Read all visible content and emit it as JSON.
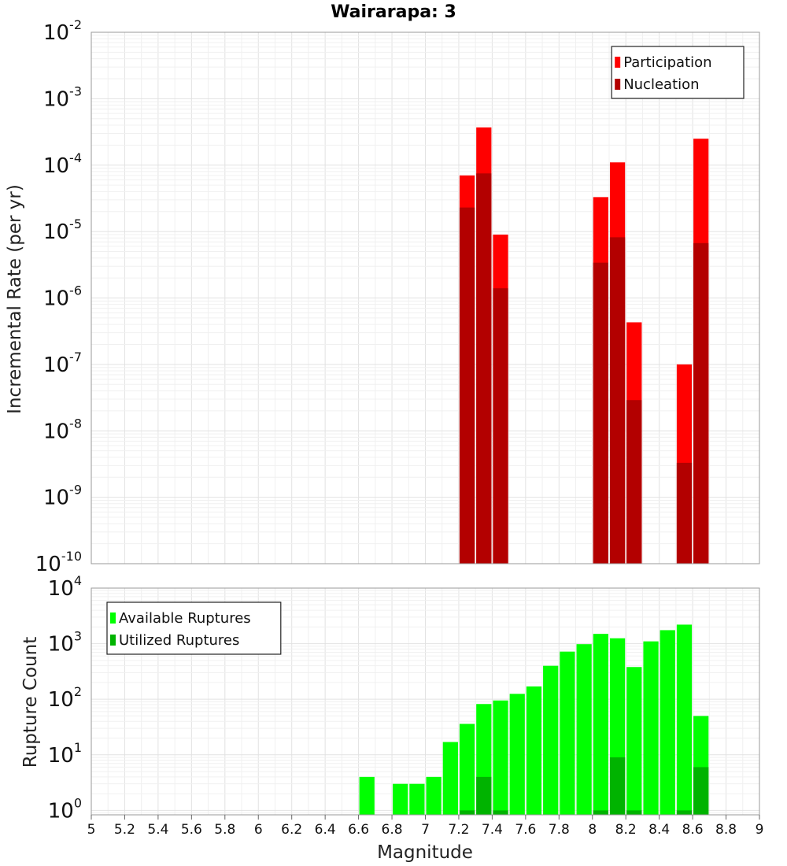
{
  "chart_data": [
    {
      "type": "bar",
      "title": "Wairarapa: 3",
      "xlabel": "",
      "ylabel": "Incremental Rate (per yr)",
      "yscale": "log",
      "ylim_exp": [
        -10,
        -2
      ],
      "xlim": [
        5,
        9
      ],
      "bin_width": 0.1,
      "legend_position": "top-right",
      "colors": {
        "participation": "#ff0000",
        "nucleation": "#b30000"
      },
      "series": [
        {
          "name": "Participation",
          "x": [
            7.25,
            7.35,
            7.45,
            8.05,
            8.15,
            8.25,
            8.55,
            8.65
          ],
          "values": [
            7e-05,
            0.00037,
            9e-06,
            3.3e-05,
            0.00011,
            4.3e-07,
            1e-07,
            0.00025
          ]
        },
        {
          "name": "Nucleation",
          "x": [
            7.25,
            7.35,
            7.45,
            8.05,
            8.15,
            8.25,
            8.55,
            8.65
          ],
          "values": [
            2.3e-05,
            7.5e-05,
            1.4e-06,
            3.4e-06,
            8.2e-06,
            2.9e-08,
            3.3e-09,
            6.7e-06
          ]
        }
      ]
    },
    {
      "type": "bar",
      "title": "",
      "xlabel": "Magnitude",
      "ylabel": "Rupture Count",
      "yscale": "log",
      "ylim_exp": [
        -0.08,
        4
      ],
      "xlim": [
        5,
        9
      ],
      "bin_width": 0.1,
      "legend_position": "top-left",
      "colors": {
        "available": "#00ff00",
        "utilized": "#00b300"
      },
      "series": [
        {
          "name": "Available Ruptures",
          "x": [
            6.65,
            6.85,
            6.95,
            7.05,
            7.15,
            7.25,
            7.35,
            7.45,
            7.55,
            7.65,
            7.75,
            7.85,
            7.95,
            8.05,
            8.15,
            8.25,
            8.35,
            8.45,
            8.55,
            8.65
          ],
          "values": [
            4,
            3,
            3,
            4,
            17,
            36,
            82,
            95,
            125,
            170,
            400,
            720,
            980,
            1500,
            1250,
            380,
            1100,
            1750,
            2200,
            50
          ]
        },
        {
          "name": "Utilized Ruptures",
          "x": [
            7.25,
            7.35,
            7.45,
            8.05,
            8.15,
            8.25,
            8.55,
            8.65
          ],
          "values": [
            1,
            4,
            1,
            1,
            9,
            1,
            1,
            6
          ]
        }
      ],
      "x_ticks": [
        "5",
        "5.2",
        "5.4",
        "5.6",
        "5.8",
        "6",
        "6.2",
        "6.4",
        "6.6",
        "6.8",
        "7",
        "7.2",
        "7.4",
        "7.6",
        "7.8",
        "8",
        "8.2",
        "8.4",
        "8.6",
        "8.8",
        "9"
      ]
    }
  ]
}
